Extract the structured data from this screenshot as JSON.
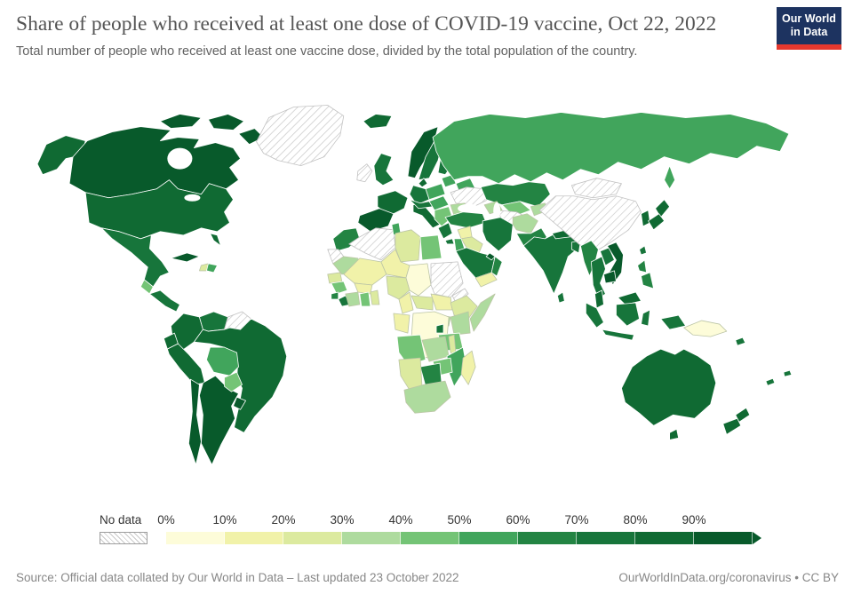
{
  "header": {
    "title": "Share of people who received at least one dose of COVID-19 vaccine, Oct 22, 2022",
    "subtitle": "Total number of people who received at least one vaccine dose, divided by the total population of the country.",
    "logo": {
      "line1": "Our World",
      "line2": "in Data",
      "bg_color": "#1d3360",
      "accent_color": "#e5382e"
    }
  },
  "chart_data": {
    "type": "choropleth_map",
    "title": "Share of people who received at least one dose of COVID-19 vaccine, Oct 22, 2022",
    "unit": "% of population",
    "legend": {
      "no_data_label": "No data",
      "no_data_pattern": "diagonal-hatch",
      "tick_labels": [
        "0%",
        "10%",
        "20%",
        "30%",
        "40%",
        "50%",
        "60%",
        "70%",
        "80%",
        "90%"
      ],
      "bin_ranges": [
        "0-10%",
        "10-20%",
        "20-30%",
        "30-40%",
        "40-50%",
        "50-60%",
        "60-70%",
        "70-80%",
        "80-90%",
        "90%+"
      ],
      "bin_colors": [
        "#fdfcd9",
        "#f1f2a9",
        "#dcea9f",
        "#aedb9e",
        "#74c476",
        "#41a55c",
        "#238443",
        "#17753b",
        "#106a33",
        "#085a2b"
      ],
      "position": "bottom"
    },
    "regions": {
      "greenland": "no-data",
      "canada": 9,
      "united-states": 8,
      "mexico": 7,
      "guatemala": 4,
      "central-america": 7,
      "cuba": 9,
      "haiti": 2,
      "dominican-republic": 5,
      "colombia": 8,
      "venezuela": 7,
      "guianas": "no-data",
      "ecuador": 8,
      "peru": 8,
      "brazil": 8,
      "bolivia": 5,
      "paraguay": 4,
      "chile": 9,
      "argentina": 9,
      "uruguay": 9,
      "iceland": 8,
      "ireland": "no-data",
      "united-kingdom": 7,
      "norway": 9,
      "sweden": 7,
      "finland": 7,
      "denmark": 8,
      "baltic-states": 5,
      "belarus": 5,
      "poland": 5,
      "germany": 7,
      "france": 8,
      "spain-portugal": 9,
      "italy": 8,
      "alpine-states": 7,
      "czechia-hungary": 5,
      "balkans": 4,
      "romania": 3,
      "bulgaria": 2,
      "greece": 7,
      "ukraine": "no-data",
      "russia": 5,
      "kazakhstan": 6,
      "uzbekistan": 4,
      "turkmenistan": "no-data",
      "kyrgyzstan-tajikistan": 3,
      "caucasus": 3,
      "turkey": 6,
      "syria": 1,
      "iraq": 2,
      "israel-jordan": 5,
      "saudi-arabia": 7,
      "yemen": 1,
      "oman": 6,
      "gulf-states": 9,
      "iran": 7,
      "afghanistan": 3,
      "pakistan": 6,
      "india": 7,
      "nepal": 8,
      "bangladesh": 7,
      "sri-lanka": 7,
      "china": "no-data",
      "mongolia": "no-data",
      "korea": 8,
      "japan": 8,
      "taiwan": 7,
      "myanmar": 6,
      "thailand": 7,
      "laos": 7,
      "vietnam": 9,
      "cambodia": 9,
      "malaysia": 8,
      "indonesia": 7,
      "philippines": 6,
      "papua-new-guinea": 0,
      "pacific-islands": 7,
      "australia": 8,
      "new-zealand": 8,
      "morocco": 6,
      "western-sahara": "no-data",
      "algeria": "no-data",
      "tunisia": 5,
      "libya": 2,
      "egypt": 4,
      "mauritania": 3,
      "senegal": 2,
      "guinea": 4,
      "sierra-leone": 6,
      "liberia": 7,
      "mali": 1,
      "burkina-faso": 1,
      "cote-divoire": 3,
      "ghana": 4,
      "togo-benin": 2,
      "niger": 1,
      "nigeria": 2,
      "chad": 0,
      "sudan": "no-data",
      "eritrea": "no-data",
      "ethiopia": 2,
      "somalia": 3,
      "south-sudan": 1,
      "central-african-republic": 2,
      "cameroon": 1,
      "dr-congo": 0,
      "congo-gabon": 1,
      "uganda": 3,
      "kenya": 3,
      "rwanda-burundi": 7,
      "tanzania": 4,
      "angola": 4,
      "zambia": 3,
      "malawi": 2,
      "mozambique": 5,
      "zimbabwe": 4,
      "botswana": 6,
      "namibia": 2,
      "south-africa": 3,
      "madagascar": 1
    }
  },
  "footer": {
    "source": "Source: Official data collated by Our World in Data – Last updated 23 October 2022",
    "attribution": "OurWorldInData.org/coronavirus • CC BY"
  }
}
